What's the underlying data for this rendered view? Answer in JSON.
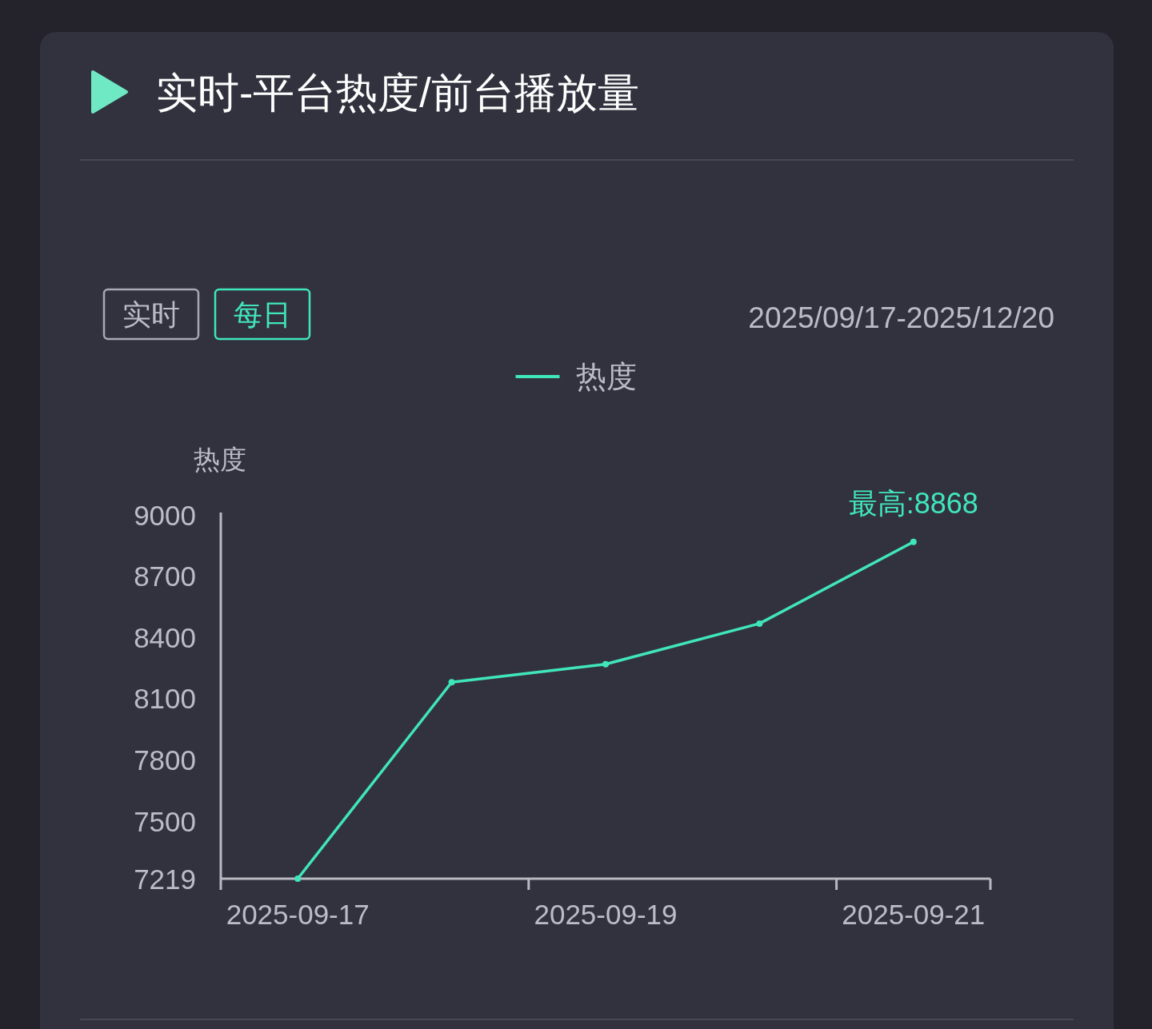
{
  "chart_data": {
    "type": "line",
    "title": "实时-平台热度/前台播放量",
    "subtitle": "2025/09/17-2025/12/20",
    "ylabel": "热度",
    "categories": [
      "2025-09-17",
      null,
      "2025-09-19",
      null,
      "2025-09-21"
    ],
    "series": [
      {
        "name": "热度",
        "color": "#40e6bb",
        "values": [
          7219,
          8181,
          8269,
          8468,
          8868
        ]
      }
    ],
    "ylim": [
      7219,
      9000
    ],
    "yticks": [
      7219,
      7500,
      7800,
      8100,
      8400,
      8700,
      9000
    ],
    "legend": "top",
    "marker": "circle",
    "line_style": "solid",
    "annotations": [
      {
        "text": "最高:8868",
        "x": "2025-09-21",
        "y": 8868
      },
      "实时",
      "每日"
    ]
  }
}
